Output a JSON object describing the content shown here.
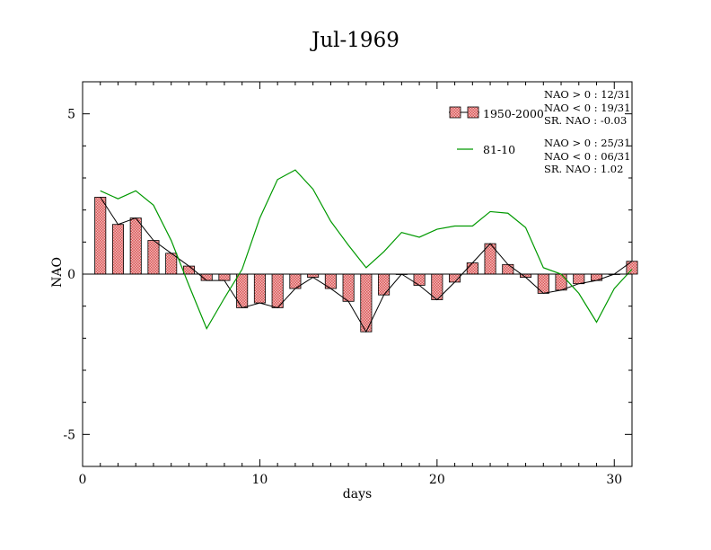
{
  "chart_data": {
    "type": "bar+line",
    "title": "Jul-1969",
    "xlabel": "days",
    "ylabel": "NAO",
    "xlim": [
      0,
      31
    ],
    "ylim": [
      -6,
      6
    ],
    "xticks": [
      0,
      10,
      20,
      30
    ],
    "yticks": [
      -5,
      0,
      5
    ],
    "series": [
      {
        "name": "1950-2000",
        "kind": "bar",
        "color": "#e87c7c",
        "x": [
          1,
          2,
          3,
          4,
          5,
          6,
          7,
          8,
          9,
          10,
          11,
          12,
          13,
          14,
          15,
          16,
          17,
          18,
          19,
          20,
          21,
          22,
          23,
          24,
          25,
          26,
          27,
          28,
          29,
          30,
          31
        ],
        "values": [
          2.4,
          1.55,
          1.75,
          1.05,
          0.65,
          0.25,
          -0.2,
          -0.2,
          -1.05,
          -0.9,
          -1.05,
          -0.45,
          -0.1,
          -0.45,
          -0.85,
          -1.8,
          -0.65,
          0.0,
          -0.35,
          -0.8,
          -0.25,
          0.35,
          0.95,
          0.3,
          -0.1,
          -0.6,
          -0.5,
          -0.3,
          -0.2,
          0.0,
          0.4
        ]
      },
      {
        "name": "81-10",
        "kind": "line",
        "color": "#009900",
        "x": [
          1,
          2,
          3,
          4,
          5,
          6,
          7,
          8,
          9,
          10,
          11,
          12,
          13,
          14,
          15,
          16,
          17,
          18,
          19,
          20,
          21,
          22,
          23,
          24,
          25,
          26,
          27,
          28,
          29,
          30,
          31
        ],
        "values": [
          2.6,
          2.35,
          2.6,
          2.15,
          1.05,
          -0.35,
          -1.7,
          -0.75,
          0.15,
          1.75,
          2.95,
          3.25,
          2.65,
          1.65,
          0.9,
          0.2,
          0.7,
          1.3,
          1.15,
          1.4,
          1.5,
          1.5,
          1.95,
          1.9,
          1.45,
          0.2,
          0.0,
          -0.6,
          -1.5,
          -0.45,
          0.15
        ]
      }
    ],
    "legend": {
      "placement": "top-right",
      "entries": [
        {
          "name": "1950-2000",
          "stats": [
            "NAO > 0 : 12/31",
            "NAO < 0 : 19/31",
            "SR. NAO : -0.03"
          ]
        },
        {
          "name": "81-10",
          "stats": [
            "NAO > 0 : 25/31",
            "NAO < 0 : 06/31",
            "SR. NAO :  1.02"
          ]
        }
      ]
    },
    "grid": false
  }
}
